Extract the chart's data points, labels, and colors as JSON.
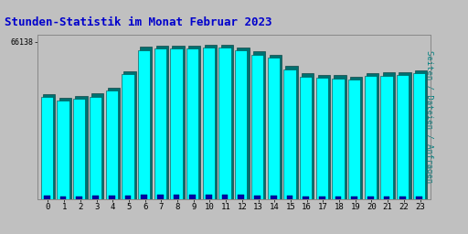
{
  "title": "Stunden-Statistik im Monat Februar 2023",
  "title_color": "#0000cc",
  "title_fontsize": 9,
  "hours": [
    0,
    1,
    2,
    3,
    4,
    5,
    6,
    7,
    8,
    9,
    10,
    11,
    12,
    13,
    14,
    15,
    16,
    17,
    18,
    19,
    20,
    21,
    22,
    23
  ],
  "pages_values": [
    620,
    600,
    610,
    625,
    660,
    760,
    910,
    920,
    918,
    920,
    922,
    923,
    908,
    882,
    860,
    792,
    748,
    740,
    736,
    728,
    750,
    753,
    758,
    768
  ],
  "files_values": [
    640,
    618,
    628,
    643,
    678,
    778,
    928,
    938,
    936,
    938,
    940,
    942,
    926,
    900,
    878,
    810,
    766,
    758,
    754,
    746,
    768,
    772,
    776,
    786
  ],
  "requests_values": [
    18,
    16,
    17,
    18,
    19,
    22,
    26,
    24,
    24,
    24,
    26,
    27,
    23,
    21,
    20,
    18,
    15,
    14,
    14,
    13,
    15,
    16,
    17,
    17
  ],
  "pages_color": "#00ffff",
  "files_color": "#007070",
  "requests_color": "#0000aa",
  "bg_color": "#c0c0c0",
  "plot_bg_color": "#c0c0c0",
  "ylabel_right": "Seiten / Dateien / Anfragen",
  "ylabel_right_color": "#008080",
  "ylabel_right_fontsize": 6.5,
  "bar_width": 0.75,
  "ylim_max": 1000,
  "ytick_label": "66138",
  "ytick_pos": 960,
  "ytick_fontsize": 6,
  "xtick_fontsize": 6.5
}
